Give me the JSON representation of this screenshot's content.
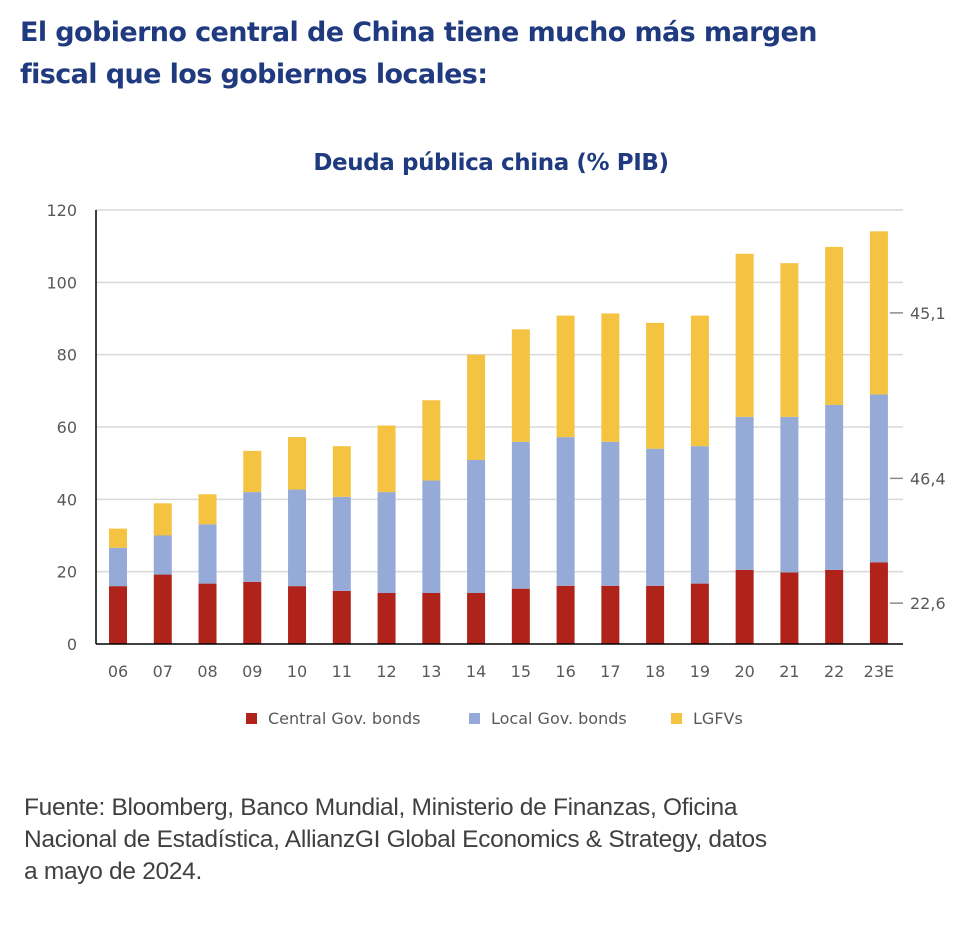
{
  "headline": {
    "line1": "El gobierno central de China tiene mucho más margen",
    "line2": "fiscal que los gobiernos locales:"
  },
  "source_note": {
    "line1": "Fuente: Bloomberg, Banco Mundial, Ministerio de Finanzas, Oficina",
    "line2": "Nacional de Estadística, AllianzGI Global Economics & Strategy, datos",
    "line3": "a mayo de 2024."
  },
  "chart_data": {
    "type": "bar",
    "stacked": true,
    "title": "Deuda pública china (% PIB)",
    "xlabel": "",
    "ylabel": "",
    "ylim": [
      0,
      120
    ],
    "yticks": [
      0,
      20,
      40,
      60,
      80,
      100,
      120
    ],
    "grid": true,
    "legend_position": "bottom",
    "categories": [
      "06",
      "07",
      "08",
      "09",
      "10",
      "11",
      "12",
      "13",
      "14",
      "15",
      "16",
      "17",
      "18",
      "19",
      "20",
      "21",
      "22",
      "23E"
    ],
    "series": [
      {
        "name": "Central Gov. bonds",
        "color": "#b0231a",
        "values": [
          16.0,
          19.2,
          16.7,
          17.2,
          16.0,
          14.7,
          14.1,
          14.1,
          14.1,
          15.3,
          16.1,
          16.1,
          16.1,
          16.7,
          20.5,
          19.8,
          20.5,
          22.6
        ]
      },
      {
        "name": "Local Gov. bonds",
        "color": "#96aad8",
        "values": [
          10.6,
          10.8,
          16.4,
          24.8,
          26.7,
          26.0,
          27.9,
          31.1,
          36.8,
          40.6,
          41.1,
          39.8,
          37.9,
          38.0,
          42.3,
          43.0,
          45.6,
          46.4
        ]
      },
      {
        "name": "LGFVs",
        "color": "#f3c341",
        "values": [
          5.3,
          8.9,
          8.3,
          11.4,
          14.5,
          14.0,
          18.4,
          22.2,
          29.1,
          31.1,
          33.6,
          35.5,
          34.8,
          36.1,
          45.1,
          42.5,
          43.7,
          45.1
        ]
      }
    ],
    "annotations": [
      {
        "category": "23E",
        "series": "Central Gov. bonds",
        "label": "22,6"
      },
      {
        "category": "23E",
        "series": "Local Gov. bonds",
        "label": "46,4"
      },
      {
        "category": "23E",
        "series": "LGFVs",
        "label": "45,1"
      }
    ],
    "colors": {
      "axis": "#000000",
      "grid": "#d9d9d9",
      "tick_text": "#595959",
      "title": "#1f3a7f"
    }
  }
}
